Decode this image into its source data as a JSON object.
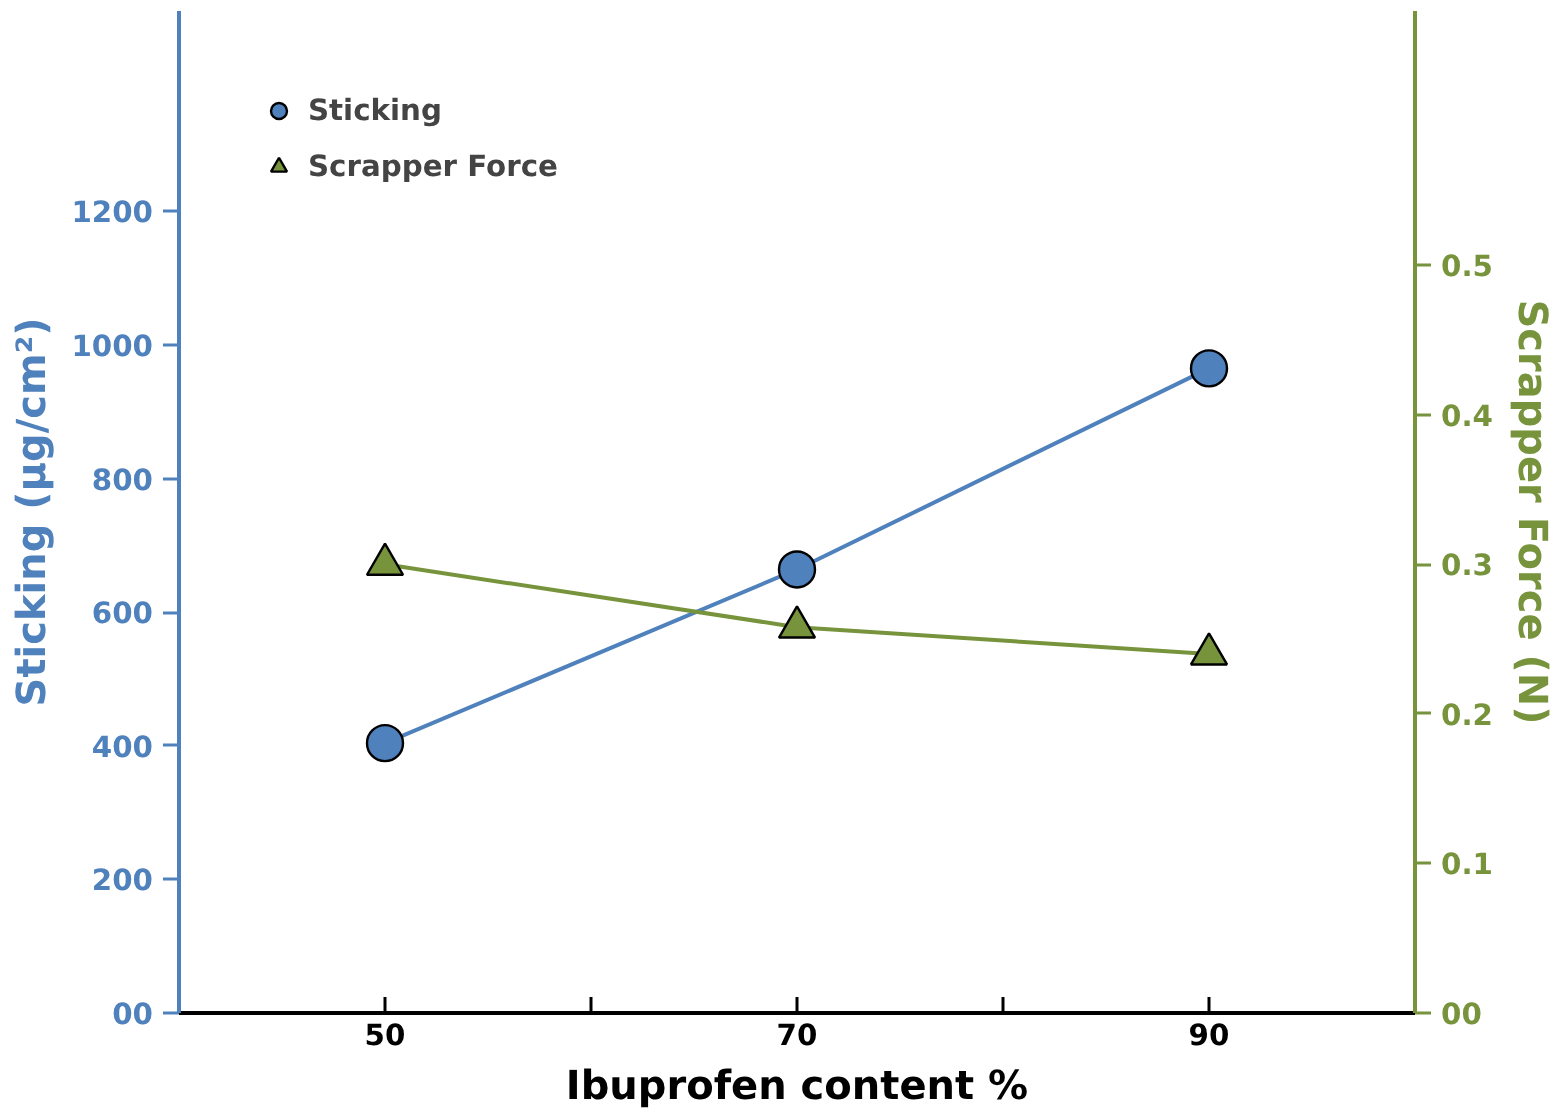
{
  "chart_data": {
    "type": "line",
    "xlabel": "Ibuprofen content %",
    "ylabel": "Sticking (µg/cm²)",
    "y2label": "Scrapper Force (N)",
    "x": [
      50,
      70,
      90
    ],
    "xlim": [
      40,
      100
    ],
    "xticks": [
      50,
      {
        "value": 60,
        "label": null
      },
      70,
      {
        "value": 80,
        "label": null
      },
      90
    ],
    "ylim": [
      0,
      1500
    ],
    "yticks": [
      {
        "value": 0,
        "label": "00"
      },
      200,
      400,
      600,
      800,
      1000,
      1200
    ],
    "y2lim": [
      0,
      0.67
    ],
    "y2ticks": [
      {
        "value": 0,
        "label": "00"
      },
      0.1,
      0.2,
      0.3,
      0.4,
      0.5
    ],
    "series": [
      {
        "name": "Sticking",
        "color": "#4f81bd",
        "marker": "circle",
        "values": [
          404,
          664,
          965
        ]
      },
      {
        "name": "Scrapper Force",
        "color": "#77933c",
        "marker": "triangle",
        "axis": "y2",
        "values": [
          0.3,
          0.258,
          0.24
        ]
      }
    ],
    "legend": "top left",
    "grid": false
  }
}
